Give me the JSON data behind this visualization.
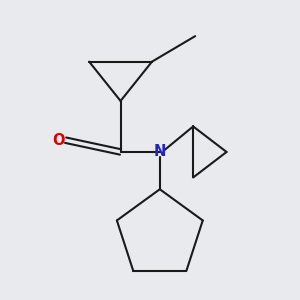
{
  "background_color": "#e8eaed",
  "bond_color": "#1a1a1a",
  "bond_width": 1.5,
  "O_color": "#dd0000",
  "N_color": "#2222cc",
  "font_size": 10.5,
  "figsize": [
    3.0,
    3.0
  ],
  "dpi": 100
}
